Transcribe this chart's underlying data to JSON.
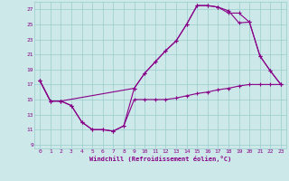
{
  "xlabel": "Windchill (Refroidissement éolien,°C)",
  "bg_color": "#cce8e8",
  "line_color": "#880088",
  "grid_color": "#99cccc",
  "xlim": [
    -0.5,
    23.5
  ],
  "ylim": [
    8.5,
    28.0
  ],
  "yticks": [
    9,
    11,
    13,
    15,
    17,
    19,
    21,
    23,
    25,
    27
  ],
  "xticks": [
    0,
    1,
    2,
    3,
    4,
    5,
    6,
    7,
    8,
    9,
    10,
    11,
    12,
    13,
    14,
    15,
    16,
    17,
    18,
    19,
    20,
    21,
    22,
    23
  ],
  "line1_x": [
    0,
    1,
    2,
    3,
    4,
    5,
    6,
    7,
    8,
    9,
    10,
    11,
    12,
    13,
    14,
    15,
    16,
    17,
    18,
    19,
    20,
    21,
    22,
    23
  ],
  "line1_y": [
    17.5,
    14.8,
    14.8,
    14.2,
    12.0,
    11.0,
    11.0,
    10.8,
    11.5,
    15.0,
    15.0,
    15.0,
    15.0,
    15.2,
    15.5,
    15.8,
    16.0,
    16.3,
    16.5,
    16.8,
    17.0,
    17.0,
    17.0,
    17.0
  ],
  "line2_x": [
    0,
    1,
    2,
    3,
    4,
    5,
    6,
    7,
    8,
    9,
    10,
    11,
    12,
    13,
    14,
    15,
    16,
    17,
    18,
    19,
    20,
    21,
    22,
    23
  ],
  "line2_y": [
    17.5,
    14.8,
    14.8,
    14.2,
    12.0,
    11.0,
    11.0,
    10.8,
    11.5,
    16.5,
    18.5,
    20.0,
    21.5,
    22.8,
    25.0,
    27.5,
    27.5,
    27.3,
    26.8,
    25.2,
    25.3,
    20.8,
    18.8,
    17.0
  ],
  "line3_x": [
    0,
    1,
    2,
    9,
    10,
    11,
    12,
    13,
    14,
    15,
    16,
    17,
    18,
    19,
    20,
    21,
    22,
    23
  ],
  "line3_y": [
    17.5,
    14.8,
    14.8,
    16.5,
    18.5,
    20.0,
    21.5,
    22.8,
    25.0,
    27.5,
    27.5,
    27.3,
    26.5,
    26.5,
    25.3,
    20.8,
    18.8,
    17.0
  ]
}
